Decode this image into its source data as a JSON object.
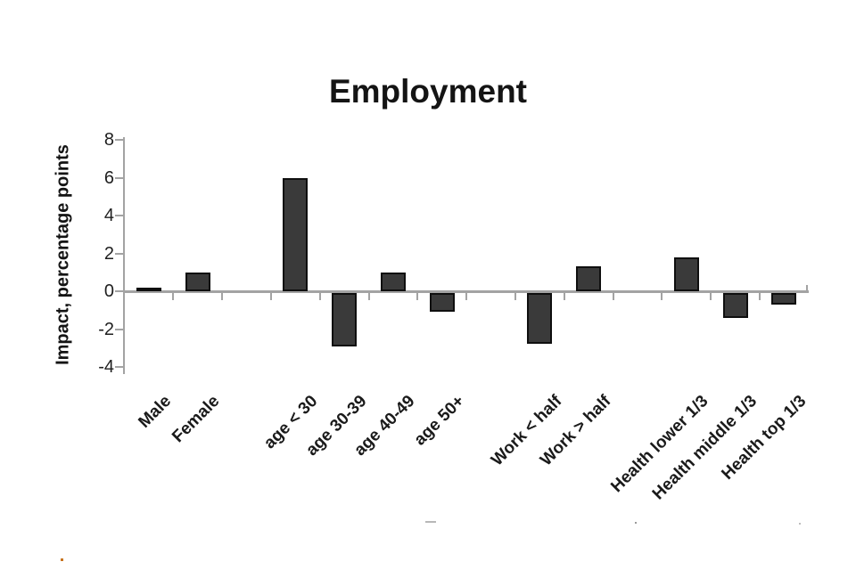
{
  "chart_data": {
    "type": "bar",
    "title": "Employment",
    "ylabel": "Impact, percentage points",
    "xlabel": "",
    "categories": [
      "Male",
      "Female",
      "age < 30",
      "age 30-39",
      "age 40-49",
      "age 50+",
      "Work < half",
      "Work > half",
      "Health lower 1/3",
      "Health middle 1/3",
      "Health top 1/3"
    ],
    "values": [
      0.1,
      1.0,
      6.0,
      -2.8,
      1.0,
      -1.0,
      -2.7,
      1.3,
      1.8,
      -1.3,
      -0.6
    ],
    "group_slots": [
      0,
      1,
      3,
      4,
      5,
      6,
      8,
      9,
      11,
      12,
      13
    ],
    "groups": {
      "gender": [
        "Male",
        "Female"
      ],
      "age": [
        "age < 30",
        "age 30-39",
        "age 40-49",
        "age 50+"
      ],
      "work": [
        "Work < half",
        "Work > half"
      ],
      "health": [
        "Health lower 1/3",
        "Health middle 1/3",
        "Health top 1/3"
      ]
    },
    "yticks": [
      8,
      6,
      4,
      2,
      0,
      -2,
      -4
    ],
    "ylim": [
      -4,
      8
    ],
    "grid": false,
    "legend": false,
    "colors": {
      "bar_fill": "#3a3a3a",
      "bar_border": "#0f0f0f",
      "axis": "#a3a3a3",
      "text": "#1a1a1a"
    }
  }
}
